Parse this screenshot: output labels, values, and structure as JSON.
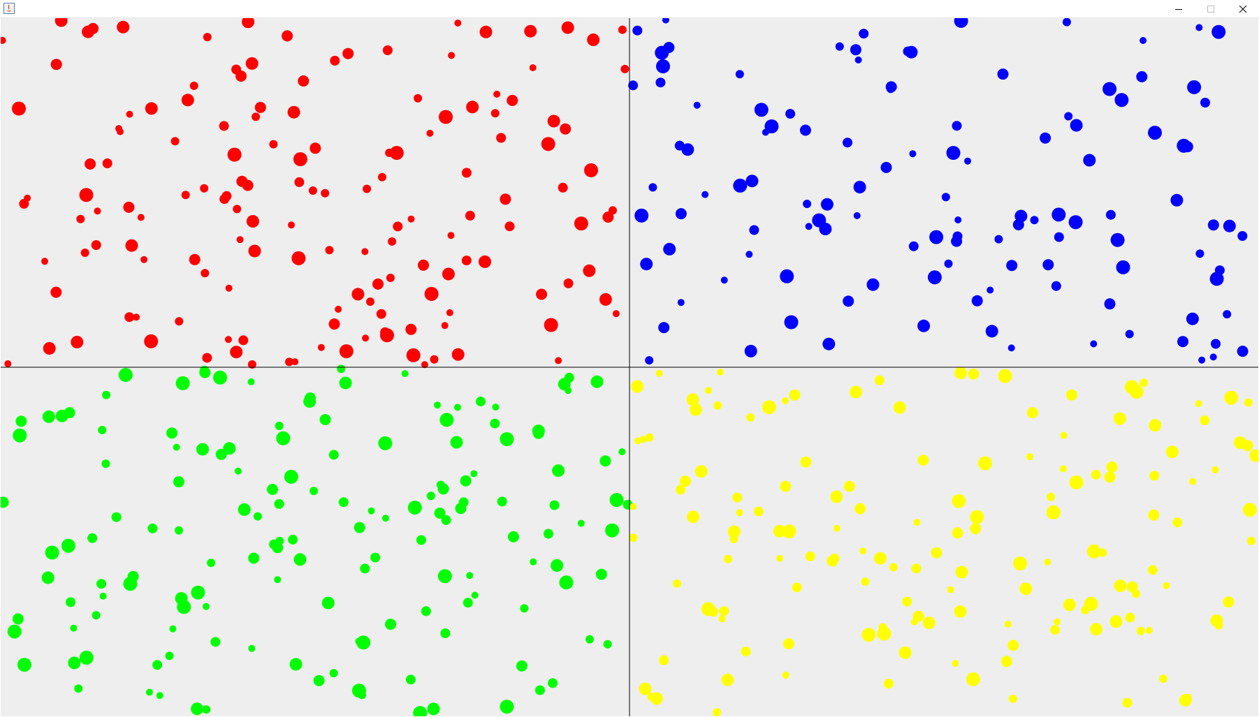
{
  "window": {
    "title": "",
    "icon": "java-app-icon",
    "controls": [
      "minimize-icon",
      "maximize-icon",
      "close-icon"
    ]
  },
  "colors": {
    "canvas_bg": "#eeeeee",
    "divider": "#000000",
    "red": "#ff0000",
    "blue": "#0000ff",
    "green": "#00ff00",
    "yellow": "#ffff00"
  },
  "panels": [
    {
      "name": "red",
      "color": "#ff0000",
      "count": 150
    },
    {
      "name": "blue",
      "color": "#0000ff",
      "count": 120
    },
    {
      "name": "green",
      "color": "#00ff00",
      "count": 150
    },
    {
      "name": "yellow",
      "color": "#ffff00",
      "count": 150
    }
  ]
}
